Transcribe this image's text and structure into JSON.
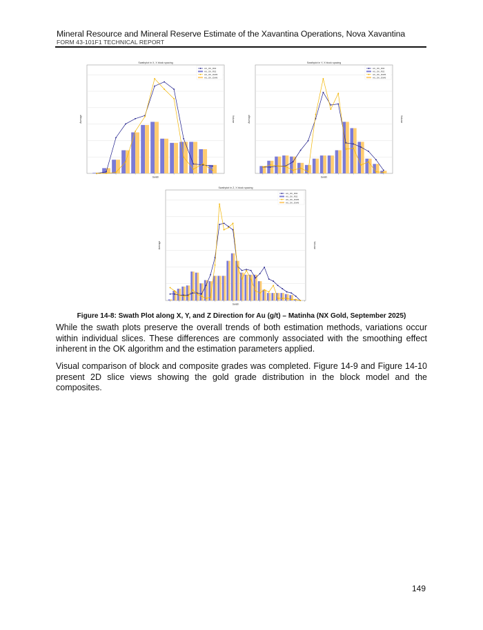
{
  "header": {
    "title": "Mineral Resource and Mineral Reserve Estimate of the Xavantina Operations, Nova Xavantina",
    "subtitle": "FORM 43-101F1 TECHNICAL REPORT"
  },
  "colors": {
    "bar_ok": "#7b7bd6",
    "bar_idw": "#ffcc70",
    "line_ok": "#1c1c8a",
    "line_idw": "#f2b400"
  },
  "chart_data": [
    {
      "type": "bar+line",
      "title": "Swathplot in X, X block spacing",
      "xlabel": "Swath",
      "ylabel": "Average",
      "y2label": "Volume",
      "grid": true,
      "legend": "top-right",
      "series": [
        {
          "name": "AU_OK_R02",
          "kind": "line",
          "values": [
            0.0,
            0.015,
            0.34,
            0.47,
            0.52,
            0.55,
            0.83,
            0.87,
            0.8,
            0.33,
            0.09,
            0.08,
            0.07
          ]
        },
        {
          "name": "AU_OK_R02",
          "kind": "bar",
          "values": [
            0.005,
            0.05,
            0.13,
            0.22,
            0.39,
            0.46,
            0.49,
            0.33,
            0.29,
            0.3,
            0.3,
            0.23,
            0.08
          ]
        },
        {
          "name": "AU_OK_IDW6",
          "kind": "line",
          "values": [
            0.0,
            0.0,
            0.01,
            0.11,
            0.4,
            0.54,
            0.9,
            0.8,
            0.71,
            0.155,
            0.04,
            0.09,
            0.03
          ]
        },
        {
          "name": "AU_OK_IDW6",
          "kind": "bar",
          "values": [
            0.005,
            0.05,
            0.13,
            0.22,
            0.39,
            0.46,
            0.49,
            0.33,
            0.29,
            0.3,
            0.3,
            0.23,
            0.08
          ]
        }
      ]
    },
    {
      "type": "bar+line",
      "title": "Swathplot in Y, X block spacing",
      "xlabel": "Swath",
      "ylabel": "Average",
      "y2label": "Volume",
      "grid": true,
      "legend": "top-right",
      "series": [
        {
          "name": "AU_OK_R02",
          "kind": "line",
          "values": [
            0.06,
            0.06,
            0.07,
            0.07,
            0.11,
            0.22,
            0.31,
            0.52,
            0.77,
            0.65,
            0.66,
            0.29,
            0.28,
            0.25,
            0.21,
            0.13,
            0.03
          ]
        },
        {
          "name": "AU_OK_R02",
          "kind": "bar",
          "values": [
            0.07,
            0.12,
            0.16,
            0.17,
            0.16,
            0.1,
            0.08,
            0.14,
            0.17,
            0.17,
            0.22,
            0.49,
            0.43,
            0.3,
            0.14,
            0.09,
            0.025
          ]
        },
        {
          "name": "AU_OK_IDW6",
          "kind": "line",
          "values": [
            0.06,
            0.08,
            0.07,
            0.065,
            0.03,
            0.05,
            0.015,
            0.56,
            0.9,
            0.61,
            0.76,
            0.23,
            0.24,
            0.08,
            0.11,
            0.015,
            0.01
          ]
        },
        {
          "name": "AU_OK_IDW6",
          "kind": "bar",
          "values": [
            0.07,
            0.12,
            0.16,
            0.17,
            0.16,
            0.1,
            0.08,
            0.14,
            0.17,
            0.17,
            0.22,
            0.49,
            0.43,
            0.3,
            0.14,
            0.09,
            0.025
          ]
        }
      ]
    },
    {
      "type": "bar+line",
      "title": "Swathplot in Z, X block spacing",
      "xlabel": "Swath",
      "ylabel": "Average",
      "y2label": "Volume",
      "grid": true,
      "legend": "top-right",
      "series": [
        {
          "name": "AU_OK_R02",
          "kind": "line",
          "values": [
            0.06,
            0.06,
            0.05,
            0.05,
            0.05,
            0.07,
            0.07,
            0.06,
            0.14,
            0.24,
            0.4,
            0.71,
            0.72,
            0.69,
            0.66,
            0.32,
            0.28,
            0.29,
            0.28,
            0.21,
            0.25,
            0.31,
            0.2,
            0.18,
            0.14,
            0.11,
            0.08,
            0.07,
            0.04,
            0.0
          ]
        },
        {
          "name": "AU_OK_R02",
          "kind": "bar",
          "values": [
            0.01,
            0.09,
            0.11,
            0.13,
            0.14,
            0.27,
            0.26,
            0.16,
            0.19,
            0.18,
            0.23,
            0.23,
            0.23,
            0.37,
            0.44,
            0.37,
            0.26,
            0.24,
            0.24,
            0.24,
            0.18,
            0.1,
            0.07,
            0.07,
            0.07,
            0.07,
            0.06,
            0.05,
            0.01,
            0.003
          ]
        },
        {
          "name": "AU_OK_IDW6",
          "kind": "line",
          "values": [
            0.12,
            0.09,
            0.05,
            0.04,
            0.04,
            0.1,
            0.06,
            0.04,
            0.02,
            0.03,
            0.33,
            0.9,
            0.66,
            0.68,
            0.72,
            0.32,
            0.2,
            0.28,
            0.2,
            0.09,
            0.07,
            0.1,
            0.08,
            0.14,
            0.02,
            0.02,
            0.02,
            0.01,
            0.01,
            0.0
          ]
        },
        {
          "name": "AU_OK_IDW6",
          "kind": "bar",
          "values": [
            0.01,
            0.09,
            0.11,
            0.13,
            0.14,
            0.27,
            0.26,
            0.16,
            0.19,
            0.18,
            0.23,
            0.23,
            0.23,
            0.37,
            0.44,
            0.37,
            0.26,
            0.24,
            0.24,
            0.24,
            0.18,
            0.1,
            0.07,
            0.07,
            0.07,
            0.07,
            0.06,
            0.05,
            0.01,
            0.003
          ]
        }
      ]
    }
  ],
  "caption": "Figure 14-8: Swath Plot along X, Y, and Z Direction for Au (g/t) – Matinha (NX Gold, September 2025)",
  "paragraphs": [
    "While the swath plots preserve the overall trends of both estimation methods, variations occur within individual slices. These differences are commonly associated with the smoothing effect inherent in the OK algorithm and the estimation parameters applied.",
    "Visual comparison of block and composite grades was completed. Figure 14-9 and Figure 14-10 present 2D slice views showing the gold grade distribution in the block model and the composites."
  ],
  "page_number": "149"
}
